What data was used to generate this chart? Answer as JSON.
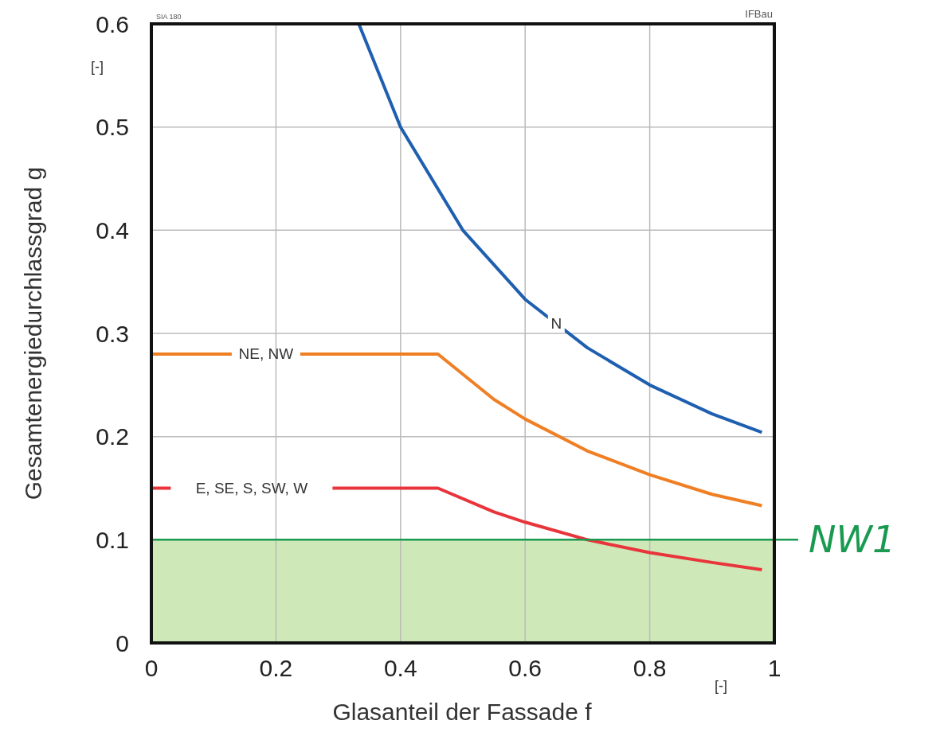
{
  "chart_data": {
    "type": "line",
    "xlabel": "Glasanteil der Fassade f",
    "ylabel": "Gesamtenergiedurchlassgrad g",
    "series": [
      {
        "name": "N",
        "color": "#1f5fb0",
        "x": [
          0.333,
          0.4,
          0.5,
          0.6,
          0.7,
          0.8,
          0.9,
          0.98
        ],
        "values": [
          0.6,
          0.5,
          0.4,
          0.333,
          0.286,
          0.25,
          0.222,
          0.204
        ]
      },
      {
        "name": "NE, NW",
        "color": "#f07f24",
        "x": [
          0,
          0.46,
          0.55,
          0.6,
          0.7,
          0.8,
          0.9,
          0.98
        ],
        "values": [
          0.28,
          0.28,
          0.236,
          0.217,
          0.186,
          0.163,
          0.144,
          0.133
        ]
      },
      {
        "name": "E, SE, S, SW, W",
        "color": "#e8343a",
        "x": [
          0,
          0.46,
          0.55,
          0.6,
          0.7,
          0.8,
          0.9,
          0.98
        ],
        "values": [
          0.15,
          0.15,
          0.127,
          0.117,
          0.1,
          0.0875,
          0.078,
          0.071
        ]
      }
    ],
    "xlim": [
      0,
      1
    ],
    "ylim": [
      0,
      0.6
    ],
    "xticks": [
      0,
      0.2,
      0.4,
      0.6,
      0.8,
      1
    ],
    "yticks": [
      0,
      0.1,
      0.2,
      0.3,
      0.4,
      0.5,
      0.6
    ],
    "grid": true,
    "line_style": "solid",
    "marker": "none",
    "ref_lines": [
      {
        "axis": "y",
        "value": 0.1,
        "label": "NW1",
        "color": "#1a9a50"
      }
    ],
    "bands": [
      {
        "axis": "y",
        "from": 0,
        "to": 0.1,
        "color": "#c9e6b0"
      }
    ],
    "annotations": [
      "[-]",
      "[-]",
      "SIA 180",
      "IFBau"
    ]
  }
}
